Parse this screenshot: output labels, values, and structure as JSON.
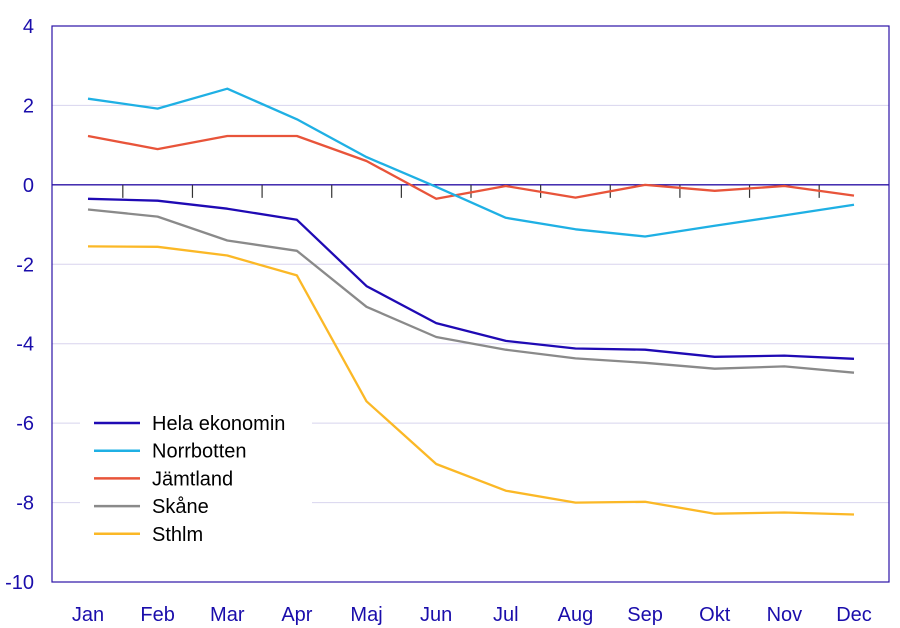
{
  "chart_data": {
    "type": "line",
    "title": "",
    "xlabel": "",
    "ylabel": "",
    "categories": [
      "Jan",
      "Feb",
      "Mar",
      "Apr",
      "Maj",
      "Jun",
      "Jul",
      "Aug",
      "Sep",
      "Okt",
      "Nov",
      "Dec"
    ],
    "ylim": [
      -10,
      4
    ],
    "yticks": [
      4,
      2,
      0,
      -2,
      -4,
      -6,
      -8,
      -10
    ],
    "grid": true,
    "legend_position": "bottom-left",
    "series": [
      {
        "name": "Hela ekonomin",
        "color": "#1f0ab4",
        "values": [
          -0.35,
          -0.4,
          -0.6,
          -0.88,
          -2.55,
          -3.48,
          -3.93,
          -4.12,
          -4.15,
          -4.33,
          -4.3,
          -4.38
        ]
      },
      {
        "name": "Norrbotten",
        "color": "#1fb0e4",
        "values": [
          2.17,
          1.92,
          2.42,
          1.65,
          0.7,
          -0.05,
          -0.83,
          -1.12,
          -1.3,
          -1.03,
          -0.77,
          -0.5
        ]
      },
      {
        "name": "Jämtland",
        "color": "#e8543a",
        "values": [
          1.23,
          0.9,
          1.23,
          1.23,
          0.6,
          -0.35,
          -0.03,
          -0.32,
          0.0,
          -0.15,
          -0.03,
          -0.27
        ]
      },
      {
        "name": "Skåne",
        "color": "#8a8a8a",
        "values": [
          -0.62,
          -0.8,
          -1.4,
          -1.66,
          -3.07,
          -3.83,
          -4.15,
          -4.37,
          -4.48,
          -4.63,
          -4.57,
          -4.73
        ]
      },
      {
        "name": "Sthlm",
        "color": "#fbb826",
        "values": [
          -1.55,
          -1.56,
          -1.78,
          -2.28,
          -5.45,
          -7.03,
          -7.7,
          -8.0,
          -7.98,
          -8.28,
          -8.25,
          -8.3
        ]
      }
    ]
  }
}
